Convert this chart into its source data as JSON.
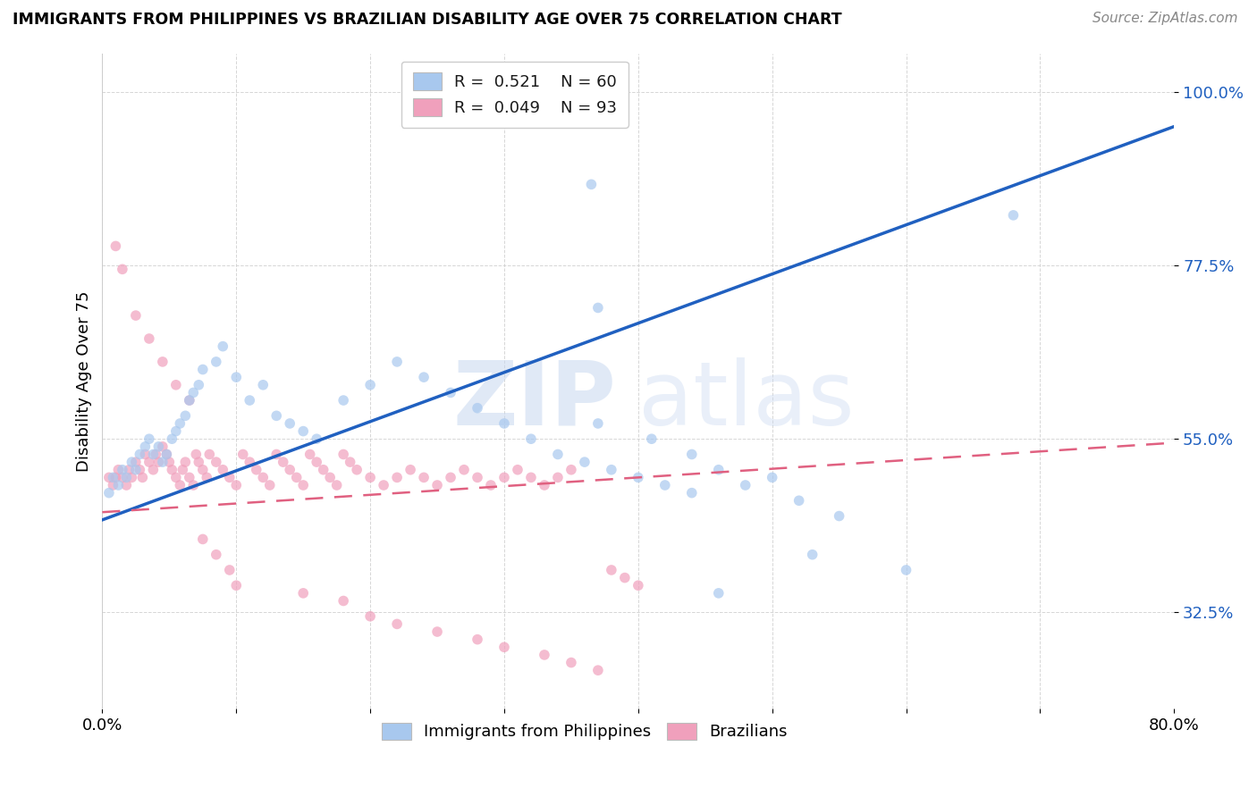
{
  "title": "IMMIGRANTS FROM PHILIPPINES VS BRAZILIAN DISABILITY AGE OVER 75 CORRELATION CHART",
  "source": "Source: ZipAtlas.com",
  "ylabel": "Disability Age Over 75",
  "yticks": [
    "100.0%",
    "77.5%",
    "55.0%",
    "32.5%"
  ],
  "ytick_vals": [
    1.0,
    0.775,
    0.55,
    0.325
  ],
  "xlim": [
    0.0,
    0.8
  ],
  "ylim": [
    0.2,
    1.05
  ],
  "blue_color": "#A8C8EE",
  "pink_color": "#F0A0BC",
  "blue_line_color": "#2060C0",
  "pink_line_color": "#E06080",
  "watermark_zip": "ZIP",
  "watermark_atlas": "atlas",
  "blue_line_x": [
    0.0,
    0.8
  ],
  "blue_line_y": [
    0.445,
    0.955
  ],
  "pink_line_x": [
    0.0,
    0.8
  ],
  "pink_line_y": [
    0.455,
    0.545
  ],
  "blue_x": [
    0.305,
    0.365,
    0.68,
    0.37,
    0.005,
    0.008,
    0.012,
    0.015,
    0.018,
    0.022,
    0.025,
    0.028,
    0.032,
    0.035,
    0.038,
    0.042,
    0.045,
    0.048,
    0.052,
    0.055,
    0.058,
    0.062,
    0.065,
    0.068,
    0.072,
    0.075,
    0.085,
    0.09,
    0.1,
    0.11,
    0.12,
    0.13,
    0.14,
    0.15,
    0.16,
    0.18,
    0.2,
    0.22,
    0.24,
    0.26,
    0.28,
    0.3,
    0.32,
    0.34,
    0.36,
    0.38,
    0.4,
    0.42,
    0.44,
    0.46,
    0.5,
    0.53,
    0.37,
    0.41,
    0.44,
    0.46,
    0.48,
    0.52,
    0.55,
    0.6
  ],
  "blue_y": [
    1.0,
    0.88,
    0.84,
    0.72,
    0.48,
    0.5,
    0.49,
    0.51,
    0.5,
    0.52,
    0.51,
    0.53,
    0.54,
    0.55,
    0.53,
    0.54,
    0.52,
    0.53,
    0.55,
    0.56,
    0.57,
    0.58,
    0.6,
    0.61,
    0.62,
    0.64,
    0.65,
    0.67,
    0.63,
    0.6,
    0.62,
    0.58,
    0.57,
    0.56,
    0.55,
    0.6,
    0.62,
    0.65,
    0.63,
    0.61,
    0.59,
    0.57,
    0.55,
    0.53,
    0.52,
    0.51,
    0.5,
    0.49,
    0.48,
    0.35,
    0.5,
    0.4,
    0.57,
    0.55,
    0.53,
    0.51,
    0.49,
    0.47,
    0.45,
    0.38
  ],
  "pink_x": [
    0.005,
    0.008,
    0.01,
    0.012,
    0.015,
    0.018,
    0.02,
    0.022,
    0.025,
    0.028,
    0.03,
    0.032,
    0.035,
    0.038,
    0.04,
    0.042,
    0.045,
    0.048,
    0.05,
    0.052,
    0.055,
    0.058,
    0.06,
    0.062,
    0.065,
    0.068,
    0.07,
    0.072,
    0.075,
    0.078,
    0.08,
    0.085,
    0.09,
    0.095,
    0.1,
    0.105,
    0.11,
    0.115,
    0.12,
    0.125,
    0.13,
    0.135,
    0.14,
    0.145,
    0.15,
    0.155,
    0.16,
    0.165,
    0.17,
    0.175,
    0.18,
    0.185,
    0.19,
    0.2,
    0.21,
    0.22,
    0.23,
    0.24,
    0.25,
    0.26,
    0.27,
    0.28,
    0.29,
    0.3,
    0.31,
    0.32,
    0.33,
    0.34,
    0.35,
    0.01,
    0.015,
    0.025,
    0.035,
    0.045,
    0.055,
    0.065,
    0.075,
    0.085,
    0.095,
    0.1,
    0.15,
    0.18,
    0.2,
    0.22,
    0.25,
    0.28,
    0.3,
    0.33,
    0.35,
    0.37,
    0.38,
    0.39,
    0.4
  ],
  "pink_y": [
    0.5,
    0.49,
    0.5,
    0.51,
    0.5,
    0.49,
    0.51,
    0.5,
    0.52,
    0.51,
    0.5,
    0.53,
    0.52,
    0.51,
    0.53,
    0.52,
    0.54,
    0.53,
    0.52,
    0.51,
    0.5,
    0.49,
    0.51,
    0.52,
    0.5,
    0.49,
    0.53,
    0.52,
    0.51,
    0.5,
    0.53,
    0.52,
    0.51,
    0.5,
    0.49,
    0.53,
    0.52,
    0.51,
    0.5,
    0.49,
    0.53,
    0.52,
    0.51,
    0.5,
    0.49,
    0.53,
    0.52,
    0.51,
    0.5,
    0.49,
    0.53,
    0.52,
    0.51,
    0.5,
    0.49,
    0.5,
    0.51,
    0.5,
    0.49,
    0.5,
    0.51,
    0.5,
    0.49,
    0.5,
    0.51,
    0.5,
    0.49,
    0.5,
    0.51,
    0.8,
    0.77,
    0.71,
    0.68,
    0.65,
    0.62,
    0.6,
    0.42,
    0.4,
    0.38,
    0.36,
    0.35,
    0.34,
    0.32,
    0.31,
    0.3,
    0.29,
    0.28,
    0.27,
    0.26,
    0.25,
    0.38,
    0.37,
    0.36
  ]
}
